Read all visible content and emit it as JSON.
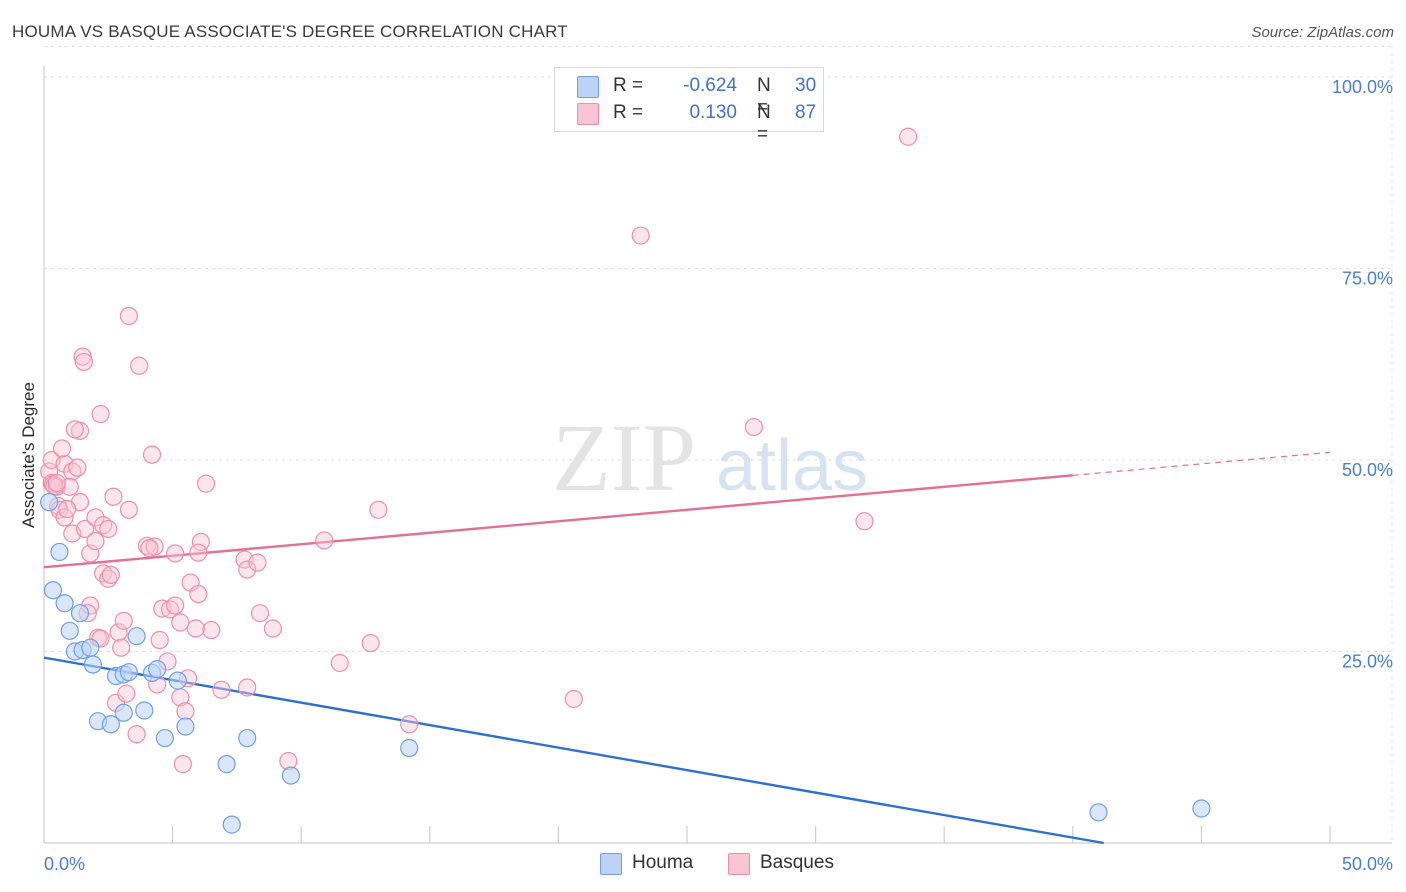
{
  "header": {
    "title": "HOUMA VS BASQUE ASSOCIATE'S DEGREE CORRELATION CHART",
    "source": "Source: ZipAtlas.com"
  },
  "watermark": {
    "zip": "ZIP",
    "atlas": "atlas"
  },
  "legend": {
    "rows": [
      {
        "r_label": "R =",
        "r_value": "-0.624",
        "n_label": "N =",
        "n_value": "30"
      },
      {
        "r_label": "R =",
        "r_value": "0.130",
        "n_label": "N =",
        "n_value": "87"
      }
    ]
  },
  "colors": {
    "houma": "#6fa0e6",
    "houma_fill": "#bcd3f5",
    "houma_line": "#2e70d4",
    "basques": "#ef8eac",
    "basques_fill": "#f9c5d5",
    "basques_line": "#e46f98",
    "tick_text": "#4a7fd0",
    "grid": "#dedede"
  },
  "chart_data": {
    "type": "scatter",
    "title": "HOUMA VS BASQUE ASSOCIATE'S DEGREE CORRELATION CHART",
    "xlabel": "",
    "ylabel": "Associate's Degree",
    "xlim": [
      0,
      50
    ],
    "ylim": [
      0,
      104
    ],
    "x_tick_labels": [
      "0.0%",
      "50.0%"
    ],
    "y_ticks": [
      25,
      50,
      75,
      100
    ],
    "y_tick_labels": [
      "25.0%",
      "50.0%",
      "75.0%",
      "100.0%"
    ],
    "grid": true,
    "legend_position": "top-center",
    "series": [
      {
        "name": "Houma",
        "points": [
          [
            0.2,
            44.5
          ],
          [
            0.6,
            38.0
          ],
          [
            0.35,
            33.0
          ],
          [
            0.8,
            31.3
          ],
          [
            1.0,
            27.7
          ],
          [
            1.4,
            30.0
          ],
          [
            1.2,
            25.0
          ],
          [
            1.5,
            25.2
          ],
          [
            1.8,
            25.5
          ],
          [
            1.9,
            23.3
          ],
          [
            2.8,
            21.8
          ],
          [
            3.1,
            22.0
          ],
          [
            3.3,
            22.3
          ],
          [
            3.6,
            27.0
          ],
          [
            4.2,
            22.2
          ],
          [
            4.4,
            22.7
          ],
          [
            5.2,
            21.2
          ],
          [
            2.1,
            15.9
          ],
          [
            2.6,
            15.5
          ],
          [
            3.1,
            17.0
          ],
          [
            3.9,
            17.3
          ],
          [
            4.7,
            13.7
          ],
          [
            5.5,
            15.2
          ],
          [
            7.1,
            10.3
          ],
          [
            7.9,
            13.7
          ],
          [
            9.6,
            8.8
          ],
          [
            14.2,
            12.4
          ],
          [
            7.3,
            2.4
          ],
          [
            41.0,
            4.0
          ],
          [
            45.0,
            4.5
          ]
        ],
        "trend": {
          "x": [
            0,
            41.2
          ],
          "y": [
            24.2,
            0
          ]
        }
      },
      {
        "name": "Basques",
        "points": [
          [
            0.2,
            48.5
          ],
          [
            0.3,
            47.0
          ],
          [
            0.35,
            46.8
          ],
          [
            0.5,
            46.5
          ],
          [
            0.55,
            44.0
          ],
          [
            0.6,
            43.5
          ],
          [
            0.8,
            42.5
          ],
          [
            0.3,
            50.0
          ],
          [
            0.8,
            49.5
          ],
          [
            0.7,
            51.5
          ],
          [
            1.1,
            48.5
          ],
          [
            1.4,
            53.8
          ],
          [
            1.2,
            54.0
          ],
          [
            1.0,
            46.5
          ],
          [
            1.4,
            44.5
          ],
          [
            1.1,
            40.4
          ],
          [
            1.6,
            41.0
          ],
          [
            1.8,
            37.8
          ],
          [
            2.0,
            42.5
          ],
          [
            2.3,
            41.5
          ],
          [
            2.5,
            41.0
          ],
          [
            2.2,
            56.0
          ],
          [
            1.5,
            63.5
          ],
          [
            1.55,
            62.8
          ],
          [
            3.3,
            68.8
          ],
          [
            3.7,
            62.3
          ],
          [
            2.7,
            45.2
          ],
          [
            3.3,
            43.5
          ],
          [
            2.0,
            39.4
          ],
          [
            2.3,
            35.2
          ],
          [
            2.5,
            34.5
          ],
          [
            1.8,
            31.0
          ],
          [
            1.7,
            30.0
          ],
          [
            2.1,
            26.8
          ],
          [
            2.2,
            26.7
          ],
          [
            2.9,
            27.5
          ],
          [
            3.1,
            29.0
          ],
          [
            3.0,
            25.5
          ],
          [
            2.8,
            18.3
          ],
          [
            3.2,
            19.5
          ],
          [
            3.6,
            14.2
          ],
          [
            4.0,
            38.8
          ],
          [
            4.3,
            38.7
          ],
          [
            4.2,
            50.7
          ],
          [
            4.5,
            26.5
          ],
          [
            4.8,
            23.7
          ],
          [
            4.6,
            30.6
          ],
          [
            4.9,
            30.5
          ],
          [
            5.1,
            31.0
          ],
          [
            5.3,
            28.8
          ],
          [
            5.1,
            37.8
          ],
          [
            5.7,
            34.0
          ],
          [
            6.0,
            32.5
          ],
          [
            6.1,
            39.3
          ],
          [
            6.0,
            37.9
          ],
          [
            6.3,
            46.9
          ],
          [
            6.5,
            27.8
          ],
          [
            5.9,
            28.0
          ],
          [
            5.3,
            19.0
          ],
          [
            5.5,
            17.2
          ],
          [
            5.6,
            21.5
          ],
          [
            5.4,
            10.3
          ],
          [
            4.4,
            20.7
          ],
          [
            6.9,
            20.0
          ],
          [
            7.9,
            20.3
          ],
          [
            7.8,
            37.0
          ],
          [
            7.9,
            35.7
          ],
          [
            8.3,
            36.6
          ],
          [
            8.4,
            30.0
          ],
          [
            8.9,
            28.0
          ],
          [
            9.5,
            10.7
          ],
          [
            10.9,
            39.5
          ],
          [
            11.5,
            23.5
          ],
          [
            12.7,
            26.1
          ],
          [
            13.0,
            43.5
          ],
          [
            14.2,
            15.5
          ],
          [
            20.6,
            18.8
          ],
          [
            23.2,
            79.3
          ],
          [
            27.6,
            54.3
          ],
          [
            31.9,
            42.0
          ],
          [
            33.6,
            92.2
          ],
          [
            0.4,
            46.6
          ],
          [
            0.9,
            43.6
          ],
          [
            1.3,
            49.0
          ],
          [
            2.6,
            35.0
          ],
          [
            4.1,
            38.5
          ],
          [
            0.5,
            47.0
          ]
        ],
        "trend": {
          "x": [
            0,
            40.0
          ],
          "y": [
            36.0,
            48.0
          ]
        },
        "trend_dashed": {
          "x": [
            40.0,
            50.0
          ],
          "y": [
            48.0,
            51.0
          ]
        }
      }
    ]
  },
  "bottom_legend": {
    "items": [
      "Houma",
      "Basques"
    ]
  }
}
